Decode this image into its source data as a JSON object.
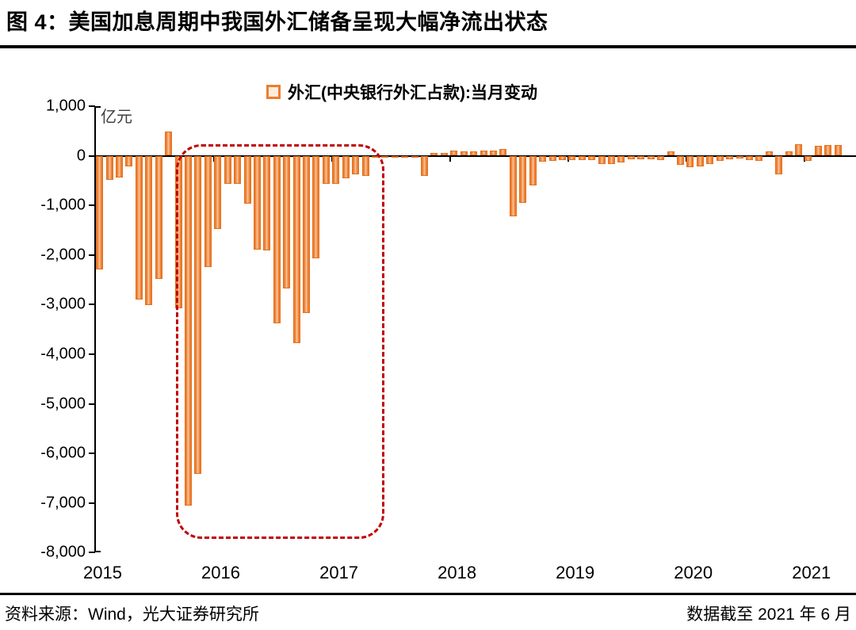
{
  "title": "图 4：美国加息周期中我国外汇储备呈现大幅净流出状态",
  "legend": {
    "label": "外汇(中央银行外汇占款):当月变动"
  },
  "footer": {
    "source": "资料来源：Wind，光大证券研究所",
    "cutoff": "数据截至 2021 年 6 月"
  },
  "colors": {
    "bar_border": "#E2711D",
    "bar_main": "#ED7D31",
    "bar_center_light": "#F8C79B",
    "highlight_box": "#C00000",
    "axis": "#000000"
  },
  "chart_data": {
    "type": "bar",
    "series_name": "外汇(中央银行外汇占款):当月变动",
    "unit": "亿元",
    "ylim": [
      -8000,
      1000
    ],
    "grid": false,
    "legend_position": "top-center",
    "y_ticks": [
      "1,000",
      "0",
      "-1,000",
      "-2,000",
      "-3,000",
      "-4,000",
      "-5,000",
      "-6,000",
      "-7,000",
      "-8,000"
    ],
    "x_year_labels": [
      "2015",
      "2016",
      "2017",
      "2018",
      "2019",
      "2020",
      "2021"
    ],
    "months": [
      "2015-01",
      "2015-02",
      "2015-03",
      "2015-04",
      "2015-05",
      "2015-06",
      "2015-07",
      "2015-08",
      "2015-09",
      "2015-10",
      "2015-11",
      "2015-12",
      "2016-01",
      "2016-02",
      "2016-03",
      "2016-04",
      "2016-05",
      "2016-06",
      "2016-07",
      "2016-08",
      "2016-09",
      "2016-10",
      "2016-11",
      "2016-12",
      "2017-01",
      "2017-02",
      "2017-03",
      "2017-04",
      "2017-05",
      "2017-06",
      "2017-07",
      "2017-08",
      "2017-09",
      "2017-10",
      "2017-11",
      "2017-12",
      "2018-01",
      "2018-02",
      "2018-03",
      "2018-04",
      "2018-05",
      "2018-06",
      "2018-07",
      "2018-08",
      "2018-09",
      "2018-10",
      "2018-11",
      "2018-12",
      "2019-01",
      "2019-02",
      "2019-03",
      "2019-04",
      "2019-05",
      "2019-06",
      "2019-07",
      "2019-08",
      "2019-09",
      "2019-10",
      "2019-11",
      "2019-12",
      "2020-01",
      "2020-02",
      "2020-03",
      "2020-04",
      "2020-05",
      "2020-06",
      "2020-07",
      "2020-08",
      "2020-09",
      "2020-10",
      "2020-11",
      "2020-12",
      "2021-01",
      "2021-02",
      "2021-03",
      "2021-04"
    ],
    "values": [
      -2300,
      -490,
      -440,
      -215,
      -2900,
      -3010,
      -2490,
      490,
      -3080,
      -7060,
      -6410,
      -2250,
      -1470,
      -560,
      -575,
      -970,
      -1890,
      -1910,
      -3375,
      -2680,
      -3785,
      -3165,
      -2070,
      -560,
      -565,
      -460,
      -375,
      -405,
      -35,
      -25,
      -45,
      -25,
      -30,
      -415,
      55,
      50,
      100,
      95,
      95,
      110,
      100,
      140,
      -1230,
      -950,
      -600,
      -120,
      -100,
      -95,
      -85,
      -85,
      -85,
      -160,
      -160,
      -130,
      -75,
      -75,
      -70,
      -80,
      80,
      -185,
      -235,
      -210,
      -170,
      -105,
      -65,
      -60,
      -90,
      -105,
      80,
      -380,
      95,
      225,
      -110,
      195,
      215,
      215
    ],
    "highlight": {
      "shape": "dashed-rounded-rect",
      "color": "#C00000",
      "from": "2015-09",
      "to": "2017-05"
    }
  }
}
